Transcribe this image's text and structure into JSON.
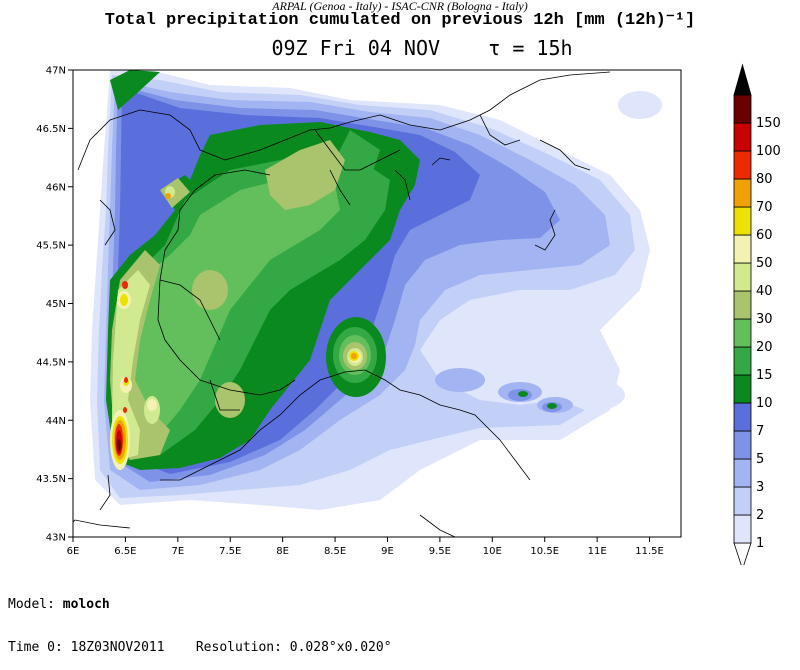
{
  "header": {
    "credits": "ARPAL (Genoa - Italy)  -  ISAC-CNR (Bologna - Italy)",
    "title": "Total precipitation cumulated on previous 12h [mm (12h)⁻¹]",
    "valid_time": "09Z Fri 04 NOV",
    "lead_label": "τ = 15h"
  },
  "map": {
    "lat_labels": [
      "47N",
      "46.5N",
      "46N",
      "45.5N",
      "45N",
      "44.5N",
      "44N",
      "43.5N",
      "43N"
    ],
    "lon_labels": [
      "6E",
      "6.5E",
      "7E",
      "7.5E",
      "8E",
      "8.5E",
      "9E",
      "9.5E",
      "10E",
      "10.5E",
      "11E",
      "11.5E"
    ],
    "lat_range": [
      43,
      47
    ],
    "lon_range": [
      6,
      11.8
    ]
  },
  "colorbar": {
    "levels": [
      "1",
      "2",
      "3",
      "5",
      "7",
      "10",
      "15",
      "20",
      "30",
      "40",
      "50",
      "60",
      "70",
      "80",
      "100",
      "150"
    ],
    "colors": [
      "#ffffff",
      "#dfe6fb",
      "#c2cff7",
      "#a2b4f1",
      "#7e93e8",
      "#5b6fdc",
      "#0a8a1e",
      "#33a844",
      "#63bf5b",
      "#a9c46c",
      "#d2ea8f",
      "#f4f2b3",
      "#ece100",
      "#f0a300",
      "#ee2a00",
      "#c90000",
      "#6b0000",
      "#000000"
    ]
  },
  "footer": {
    "model_label": "Model:",
    "model_value": "moloch",
    "time0_label": "Time 0:",
    "time0_value": "18Z03NOV2011",
    "resolution_label": "Resolution:",
    "resolution_value": "0.028°x0.020°"
  }
}
